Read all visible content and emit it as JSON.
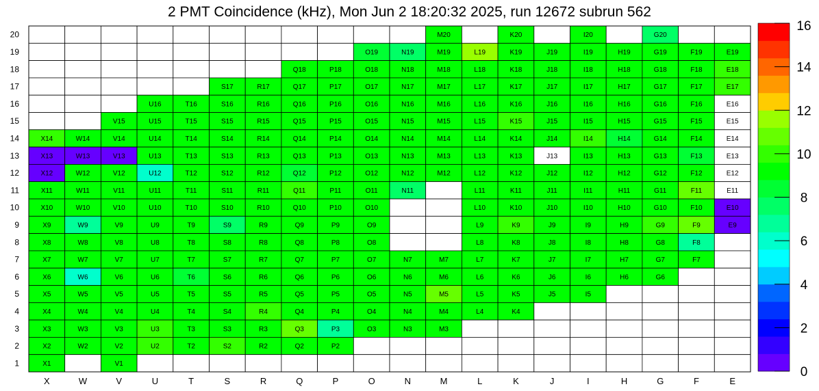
{
  "chart_data": {
    "type": "heatmap",
    "title": "2 PMT Coincidence (kHz), Mon Jun  2 18:20:32 2025, run 12672 subrun 562",
    "x_labels": [
      "X",
      "W",
      "V",
      "U",
      "T",
      "S",
      "R",
      "Q",
      "P",
      "O",
      "N",
      "M",
      "L",
      "K",
      "J",
      "I",
      "H",
      "G",
      "F",
      "E"
    ],
    "y_labels": [
      "1",
      "2",
      "3",
      "4",
      "5",
      "6",
      "7",
      "8",
      "9",
      "10",
      "11",
      "12",
      "13",
      "14",
      "15",
      "16",
      "17",
      "18",
      "19",
      "20"
    ],
    "colorbar": {
      "min": 0,
      "max": 16,
      "tick_labels": [
        "0",
        "2",
        "4",
        "6",
        "8",
        "10",
        "12",
        "14",
        "16"
      ]
    },
    "rows": [
      {
        "y": "20",
        "cells": [
          null,
          null,
          null,
          null,
          null,
          null,
          null,
          null,
          null,
          null,
          null,
          8.8,
          null,
          9.4,
          null,
          8.8,
          null,
          7.5,
          null,
          null
        ]
      },
      {
        "y": "19",
        "cells": [
          null,
          null,
          null,
          null,
          null,
          null,
          null,
          null,
          null,
          8.1,
          7.5,
          9.4,
          11.2,
          8.8,
          9.4,
          9.4,
          9.4,
          9.4,
          9.4,
          9.4
        ]
      },
      {
        "y": "18",
        "cells": [
          null,
          null,
          null,
          null,
          null,
          null,
          null,
          8.8,
          9.4,
          9.4,
          9.4,
          9.4,
          9.4,
          8.8,
          8.8,
          8.8,
          9.4,
          9.4,
          9.4,
          10.0
        ]
      },
      {
        "y": "17",
        "cells": [
          null,
          null,
          null,
          null,
          null,
          8.8,
          9.4,
          9.4,
          9.4,
          9.4,
          9.4,
          9.4,
          9.4,
          9.4,
          9.4,
          9.4,
          9.4,
          9.4,
          9.4,
          10.0
        ]
      },
      {
        "y": "16",
        "cells": [
          null,
          null,
          null,
          9.4,
          9.4,
          9.4,
          9.4,
          9.4,
          9.4,
          9.4,
          9.4,
          9.4,
          9.4,
          9.4,
          9.4,
          9.4,
          9.4,
          9.4,
          9.4,
          null
        ]
      },
      {
        "y": "15",
        "cells": [
          null,
          null,
          8.8,
          9.4,
          9.4,
          9.4,
          9.4,
          9.4,
          9.4,
          9.4,
          9.4,
          9.4,
          9.4,
          10.0,
          9.4,
          9.4,
          9.4,
          9.4,
          9.4,
          null
        ]
      },
      {
        "y": "14",
        "cells": [
          10.0,
          9.4,
          9.4,
          9.4,
          9.4,
          9.4,
          9.4,
          9.4,
          9.4,
          9.4,
          9.4,
          9.4,
          9.4,
          9.4,
          9.4,
          10.0,
          8.1,
          9.4,
          9.4,
          null
        ]
      },
      {
        "y": "13",
        "cells": [
          0.6,
          0.6,
          0.6,
          8.8,
          8.8,
          8.8,
          8.8,
          8.8,
          8.8,
          8.8,
          8.8,
          8.8,
          9.4,
          9.4,
          null,
          9.4,
          8.8,
          8.8,
          8.1,
          null
        ]
      },
      {
        "y": "12",
        "cells": [
          0.6,
          9.4,
          9.4,
          5.6,
          8.8,
          8.8,
          8.8,
          8.1,
          9.4,
          9.4,
          9.4,
          9.4,
          9.4,
          9.4,
          9.4,
          9.4,
          9.4,
          9.4,
          9.4,
          null
        ]
      },
      {
        "y": "11",
        "cells": [
          9.4,
          9.4,
          9.4,
          9.4,
          9.4,
          8.8,
          9.4,
          10.0,
          9.4,
          9.4,
          7.5,
          null,
          9.4,
          9.4,
          9.4,
          8.8,
          9.4,
          9.4,
          10.6,
          null
        ]
      },
      {
        "y": "10",
        "cells": [
          9.4,
          9.4,
          9.4,
          9.4,
          9.4,
          9.4,
          9.4,
          9.4,
          9.4,
          9.4,
          null,
          null,
          9.4,
          9.4,
          9.4,
          9.4,
          9.4,
          9.4,
          9.4,
          0.6
        ]
      },
      {
        "y": "9",
        "cells": [
          9.4,
          6.8,
          8.8,
          9.4,
          9.4,
          7.5,
          9.4,
          9.4,
          9.4,
          9.4,
          null,
          null,
          9.4,
          10.0,
          9.4,
          9.4,
          9.4,
          10.0,
          10.6,
          0.6
        ]
      },
      {
        "y": "8",
        "cells": [
          9.4,
          9.4,
          9.4,
          9.4,
          9.4,
          9.4,
          9.4,
          9.4,
          9.4,
          9.4,
          null,
          null,
          9.4,
          9.4,
          9.4,
          9.4,
          9.4,
          9.4,
          6.8,
          null
        ]
      },
      {
        "y": "7",
        "cells": [
          9.4,
          9.4,
          9.4,
          9.4,
          9.4,
          9.4,
          9.4,
          9.4,
          9.4,
          9.4,
          9.4,
          9.4,
          9.4,
          9.4,
          9.4,
          9.4,
          9.4,
          9.4,
          9.4,
          null
        ]
      },
      {
        "y": "6",
        "cells": [
          9.4,
          5.6,
          9.4,
          9.4,
          8.1,
          9.4,
          9.4,
          9.4,
          9.4,
          9.4,
          9.4,
          9.4,
          9.4,
          9.4,
          9.4,
          8.8,
          9.4,
          9.4,
          null,
          null
        ]
      },
      {
        "y": "5",
        "cells": [
          9.4,
          9.4,
          9.4,
          9.4,
          9.4,
          9.4,
          9.4,
          9.4,
          9.4,
          9.4,
          9.4,
          10.6,
          9.4,
          9.4,
          9.4,
          9.4,
          null,
          null,
          null,
          null
        ]
      },
      {
        "y": "4",
        "cells": [
          9.4,
          9.4,
          9.4,
          9.4,
          9.4,
          9.4,
          10.0,
          9.4,
          9.4,
          9.4,
          9.4,
          9.4,
          9.4,
          9.4,
          null,
          null,
          null,
          null,
          null,
          null
        ]
      },
      {
        "y": "3",
        "cells": [
          9.4,
          8.8,
          9.4,
          10.0,
          9.4,
          9.4,
          9.4,
          10.6,
          6.8,
          9.4,
          9.4,
          9.4,
          null,
          null,
          null,
          null,
          null,
          null,
          null,
          null
        ]
      },
      {
        "y": "2",
        "cells": [
          9.4,
          8.8,
          9.4,
          10.0,
          9.4,
          10.0,
          9.4,
          9.4,
          9.4,
          null,
          null,
          null,
          null,
          null,
          null,
          null,
          null,
          null,
          null,
          null
        ]
      },
      {
        "y": "1",
        "cells": [
          9.4,
          null,
          8.8,
          null,
          null,
          null,
          null,
          null,
          null,
          null,
          null,
          null,
          null,
          null,
          null,
          null,
          null,
          null,
          null,
          null
        ]
      }
    ],
    "white_labeled_cells": [
      "E16",
      "E15",
      "E14",
      "J13",
      "E13",
      "E12",
      "E11"
    ]
  }
}
